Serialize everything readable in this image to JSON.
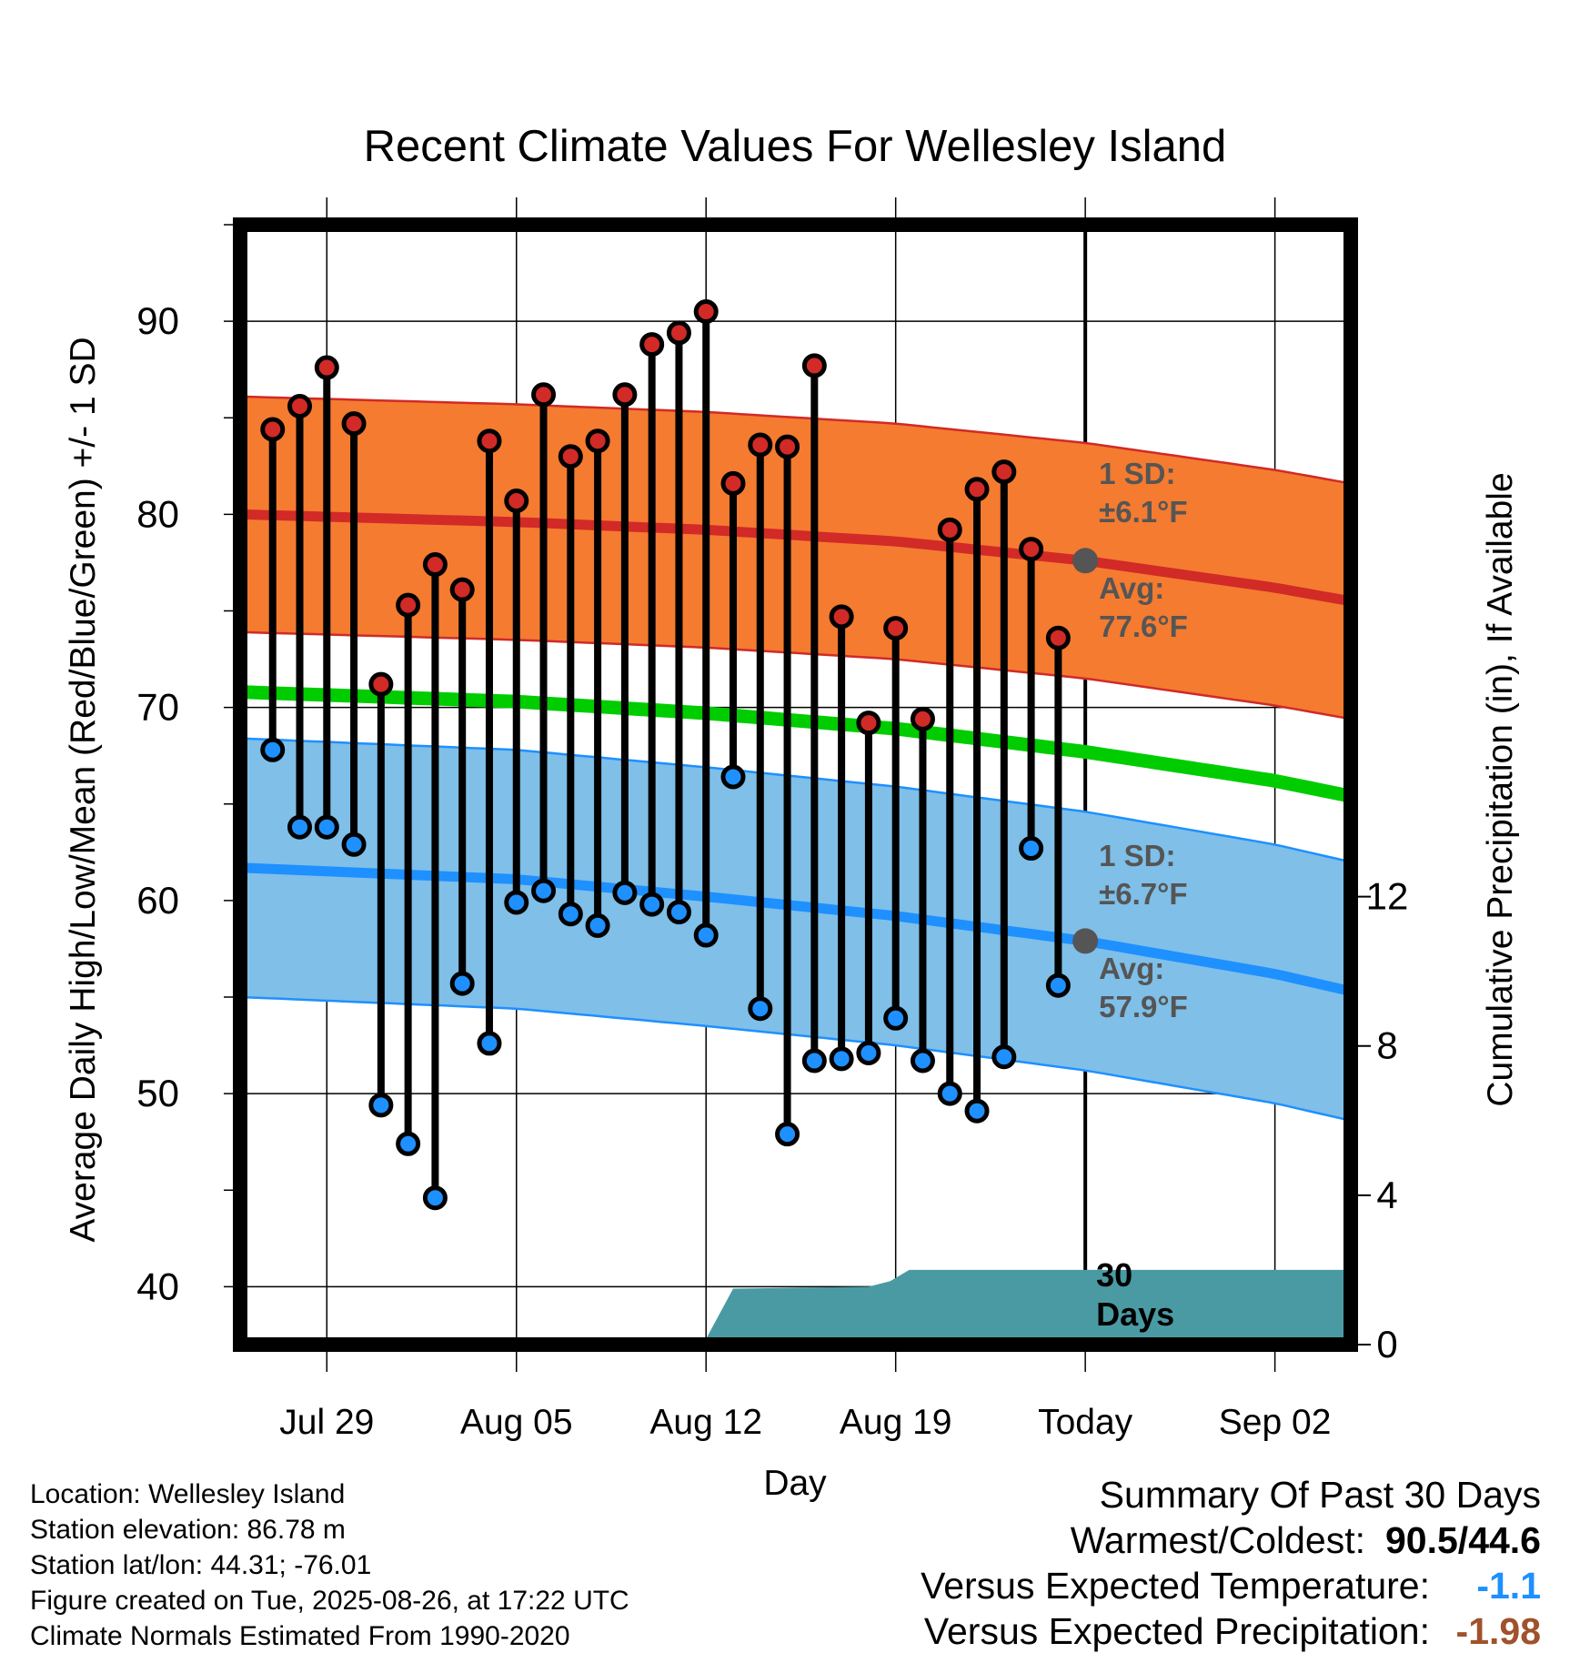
{
  "title": "Recent Climate Values For Wellesley Island",
  "footer": {
    "location": "Location: Wellesley Island",
    "elevation": "Station elevation: 86.78 m",
    "latlon": "Station lat/lon: 44.31; -76.01",
    "created": "Figure created on Tue, 2025-08-26, at 17:22 UTC",
    "normals": "Climate Normals Estimated From 1990-2020"
  },
  "summary": {
    "heading": "Summary Of Past 30 Days",
    "warmest_label": "Warmest/Coldest:",
    "warmest_value": "90.5/44.6",
    "temp_label": "Versus Expected Temperature:",
    "temp_value": "-1.1",
    "temp_color": "#1e90ff",
    "precip_label": "Versus Expected Precipitation:",
    "precip_value": "-1.98",
    "precip_color": "#a0522d"
  },
  "chart_data": {
    "type": "line",
    "xlabel": "Day",
    "ylabel": "Average Daily High/Low/Mean (Red/Blue/Green) +/- 1 SD",
    "y2label": "Cumulative Precipitation (in), If Available",
    "ylim": [
      37,
      95
    ],
    "y_ticks": [
      40,
      50,
      60,
      70,
      80,
      90
    ],
    "y2lim": [
      0,
      30
    ],
    "y2_ticks": [
      0,
      4,
      8,
      12
    ],
    "xlim": [
      -3.2,
      37.8
    ],
    "x_ticks": [
      {
        "x": 0,
        "label": "Jul 29"
      },
      {
        "x": 7,
        "label": "Aug 05"
      },
      {
        "x": 14,
        "label": "Aug 12"
      },
      {
        "x": 21,
        "label": "Aug 19"
      },
      {
        "x": 28,
        "label": "Today"
      },
      {
        "x": 35,
        "label": "Sep 02"
      }
    ],
    "today_x": 28,
    "days": [
      -2,
      -1,
      0,
      1,
      2,
      3,
      4,
      5,
      6,
      7,
      8,
      9,
      10,
      11,
      12,
      13,
      14,
      15,
      16,
      17,
      18,
      19,
      20,
      21,
      22,
      23,
      24,
      25,
      26,
      27
    ],
    "highs": [
      84.4,
      85.6,
      87.6,
      84.7,
      71.2,
      75.3,
      77.4,
      76.1,
      83.8,
      80.7,
      86.2,
      83.0,
      83.8,
      86.2,
      88.8,
      89.4,
      90.5,
      81.6,
      83.6,
      83.5,
      87.7,
      74.7,
      69.2,
      74.1,
      69.4,
      79.2,
      81.3,
      82.2,
      78.2,
      73.6
    ],
    "lows": [
      67.8,
      63.8,
      63.8,
      62.9,
      49.4,
      47.4,
      44.6,
      55.7,
      52.6,
      59.9,
      60.5,
      59.3,
      58.7,
      60.4,
      59.8,
      59.4,
      58.2,
      66.4,
      54.4,
      47.9,
      51.7,
      51.8,
      52.1,
      53.9,
      51.7,
      50.0,
      49.1,
      51.9,
      62.7,
      55.6
    ],
    "normal_high": {
      "x": [
        -3.2,
        7,
        14,
        21,
        28,
        35,
        37.8
      ],
      "values": [
        80.0,
        79.6,
        79.2,
        78.6,
        77.6,
        76.2,
        75.5
      ],
      "sd": 6.1,
      "label_sd": "1 SD:",
      "label_sd_value": "±6.1°F",
      "label_avg": "Avg:",
      "label_avg_value": "77.6°F"
    },
    "normal_low": {
      "x": [
        -3.2,
        7,
        14,
        21,
        28,
        35,
        37.8
      ],
      "values": [
        61.7,
        61.1,
        60.2,
        59.2,
        57.9,
        56.2,
        55.3
      ],
      "sd": 6.7,
      "label_sd": "1 SD:",
      "label_sd_value": "±6.7°F",
      "label_avg": "Avg:",
      "label_avg_value": "57.9°F"
    },
    "normal_mean": {
      "x": [
        -3.2,
        7,
        14,
        21,
        28,
        35,
        37.8
      ],
      "values": [
        70.8,
        70.3,
        69.7,
        68.9,
        67.7,
        66.2,
        65.4
      ]
    },
    "precip": {
      "x": [
        -2.4,
        -2,
        5,
        14,
        15,
        20,
        20.8,
        21.5,
        28,
        37.8
      ],
      "values": [
        0.0,
        0.1,
        0.15,
        0.15,
        1.5,
        1.55,
        1.7,
        2.0,
        2.0,
        2.0
      ]
    },
    "precip_label_days": "30",
    "precip_label_unit": "Days",
    "colors": {
      "high_band": "#f47b30",
      "high_line": "#d12a27",
      "low_band": "#7fbfe8",
      "low_line": "#1e90ff",
      "mean_line": "#00cc00",
      "precip": "#4a9aa3",
      "high_marker": "#d12a27",
      "low_marker": "#1e90ff",
      "avg_marker": "#555555",
      "annotation": "#555555"
    }
  }
}
